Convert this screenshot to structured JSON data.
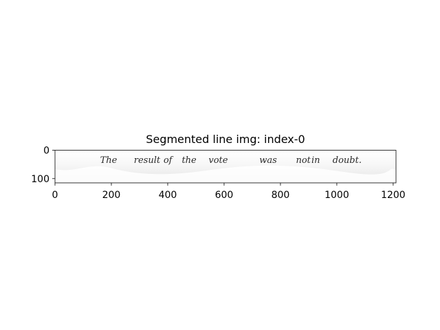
{
  "figure": {
    "title": "Segmented line img: index-0"
  },
  "image": {
    "handwritten_text": [
      "The",
      "result",
      "of",
      "the",
      "vote",
      "was",
      "not",
      "in",
      "doubt."
    ],
    "x_range": [
      0,
      1210
    ],
    "y_range": [
      0,
      115
    ],
    "colors": {
      "paper": "#f0f0f0",
      "ink": "#2a2a2a"
    }
  },
  "axes": {
    "x_ticks": [
      0,
      200,
      400,
      600,
      800,
      1000,
      1200
    ],
    "y_ticks": [
      0,
      100
    ]
  }
}
